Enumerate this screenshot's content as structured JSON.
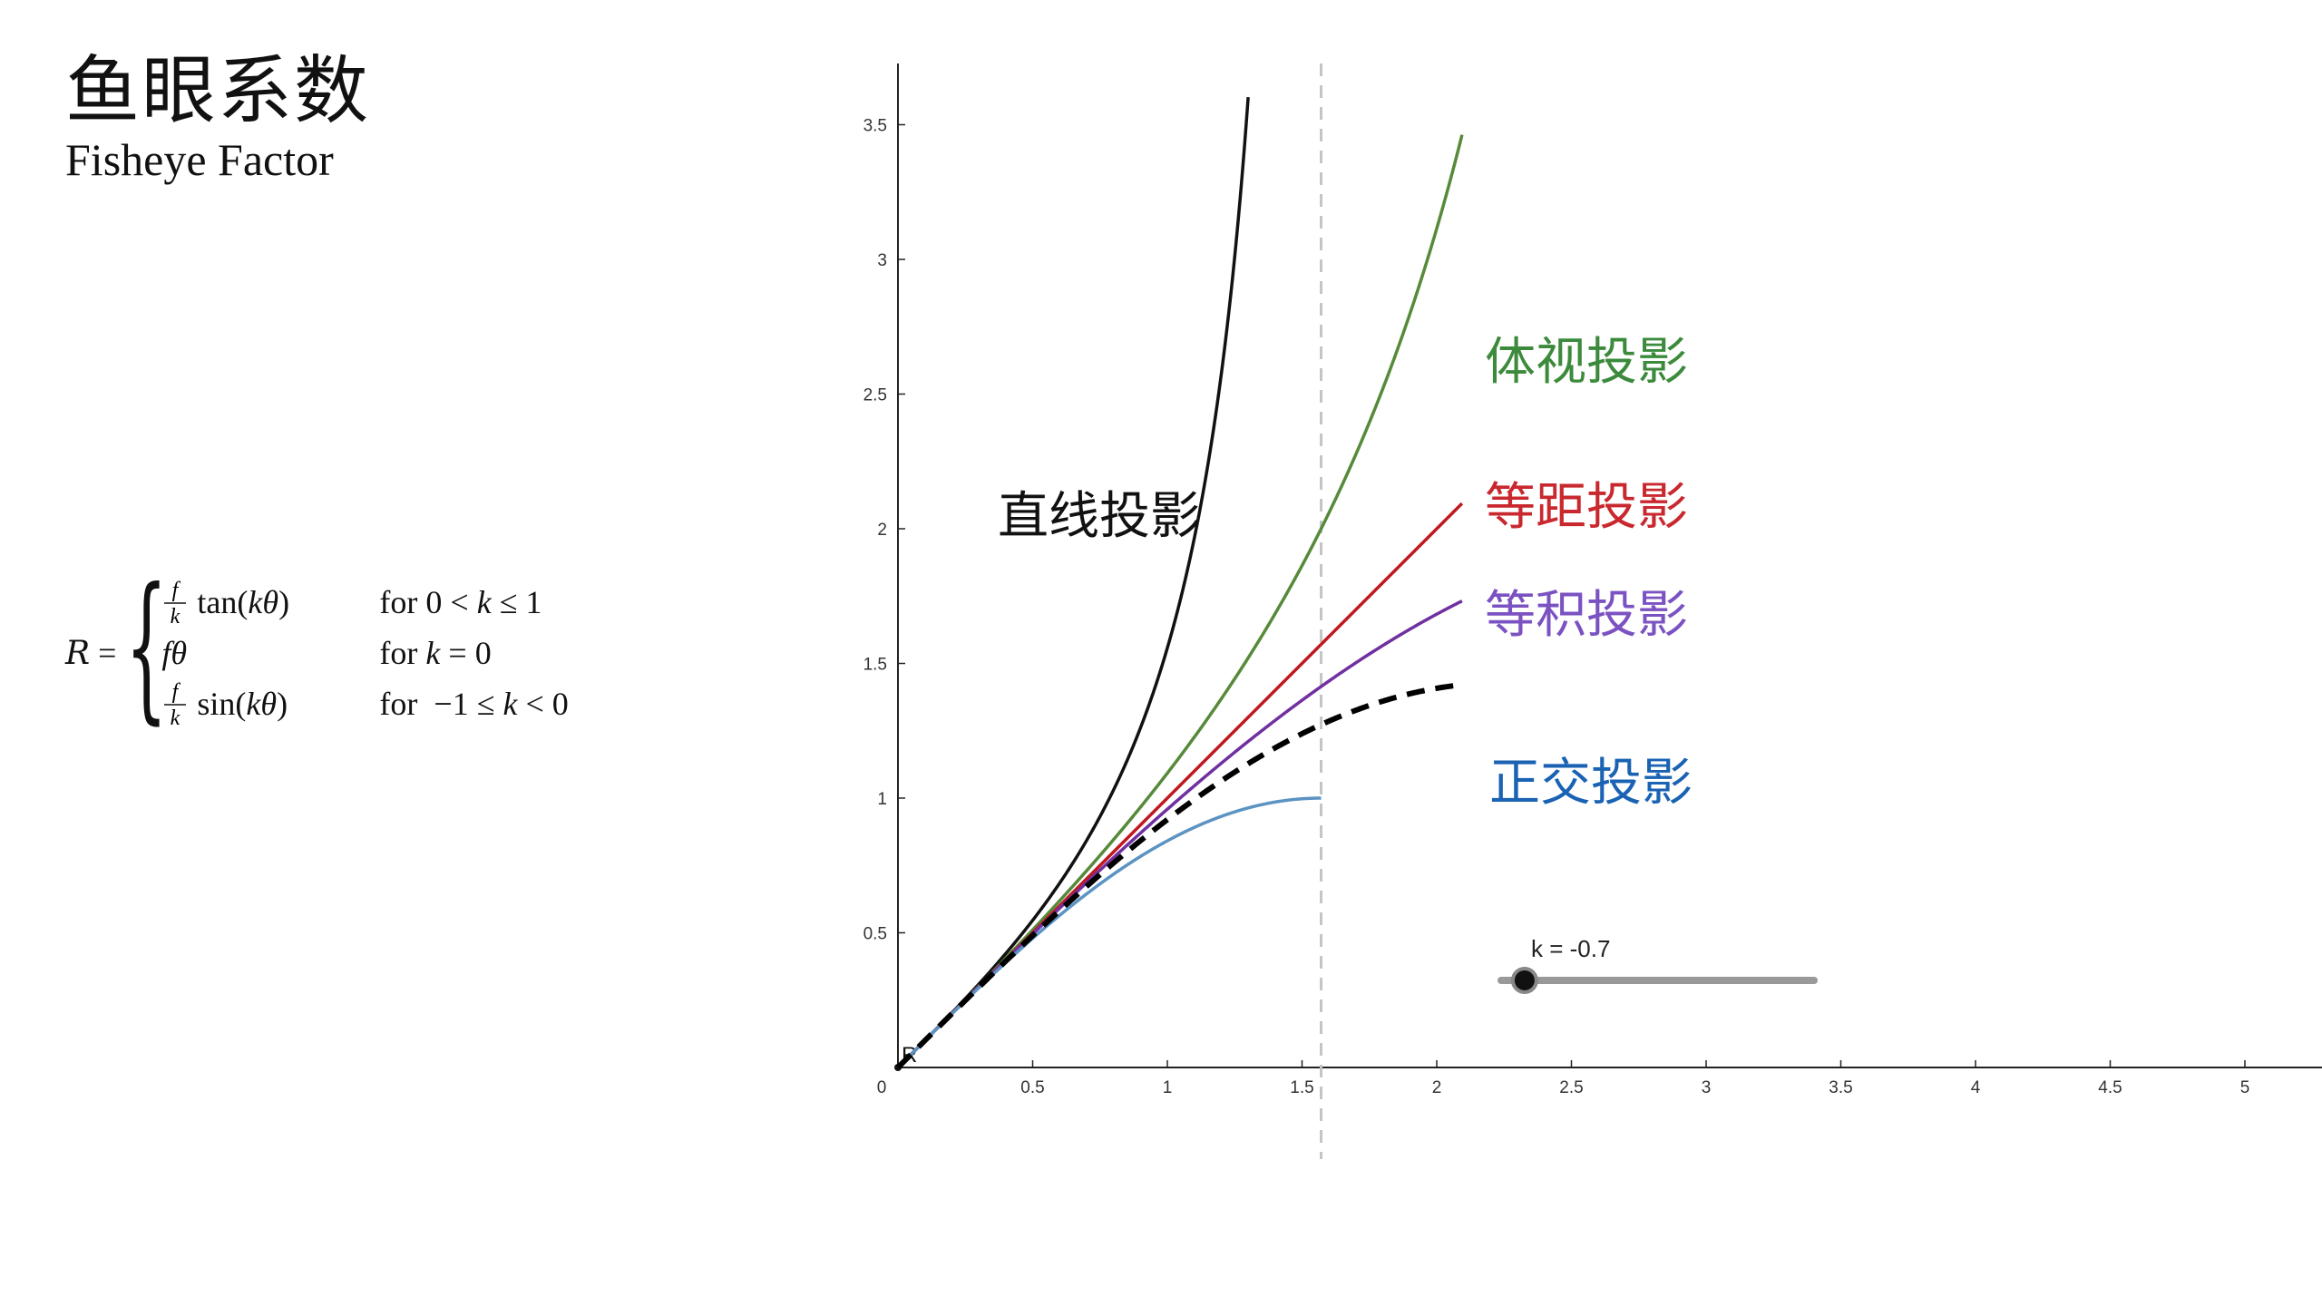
{
  "title": {
    "zh": "鱼眼系数",
    "en": "Fisheye Factor"
  },
  "formula": {
    "lhs": "R =",
    "cases": [
      {
        "expr": "f/k tan(kθ)",
        "cond": "for 0 < k ≤ 1"
      },
      {
        "expr": "fθ",
        "cond": "for k = 0"
      },
      {
        "expr": "f/k sin(kθ)",
        "cond": "for −1 ≤ k < 0"
      }
    ]
  },
  "slider": {
    "label": "k = -0.7",
    "value": -0.7,
    "min": -1,
    "max": 1
  },
  "chart_data": {
    "type": "line",
    "xlim": [
      0,
      5.2
    ],
    "ylim": [
      0,
      3.7
    ],
    "x_ticks": [
      "0",
      "0.5",
      "1",
      "1.5",
      "2",
      "2.5",
      "3",
      "3.5",
      "4",
      "4.5",
      "5"
    ],
    "y_ticks": [
      "0.5",
      "1",
      "1.5",
      "2",
      "2.5",
      "3",
      "3.5"
    ],
    "point_label": "R",
    "vertical_line_x": 1.5708,
    "series": [
      {
        "name": "直线投影",
        "k": 1,
        "x_max": 1.3,
        "color": "#111111",
        "label_color": "#111111"
      },
      {
        "name": "体视投影",
        "k": 0.5,
        "x_max": 2.094,
        "color": "#568a3a",
        "label_color": "#3c8a3c"
      },
      {
        "name": "等距投影",
        "k": 0,
        "x_max": 2.094,
        "color": "#c0181f",
        "label_color": "#c8282e"
      },
      {
        "name": "等积投影",
        "k": -0.5,
        "x_max": 2.094,
        "color": "#7030a0",
        "label_color": "#7b52c2"
      },
      {
        "name": "正交投影",
        "k": -1,
        "x_max": 1.5708,
        "color": "#5b93c2",
        "label_color": "#1a62b3"
      },
      {
        "name": "",
        "k": -0.7,
        "x_max": 2.094,
        "color": "#000000",
        "dashed": true
      }
    ]
  }
}
